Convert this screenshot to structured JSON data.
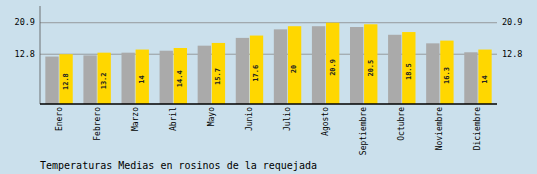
{
  "chart_data": {
    "type": "bar",
    "title": "Temperaturas Medias en rosinos de la requejada",
    "categories": [
      "Enero",
      "Febrero",
      "Marzo",
      "Abril",
      "Mayo",
      "Junio",
      "Julio",
      "Agosto",
      "Septiembre",
      "Octubre",
      "Noviembre",
      "Diciembre"
    ],
    "series": [
      {
        "color": "#AAAAAA",
        "values": [
          12.2,
          12.5,
          13.2,
          13.7,
          15.0,
          17.0,
          19.2,
          20.0,
          19.8,
          17.8,
          15.6,
          13.3
        ]
      },
      {
        "color": "#FFD700",
        "data_labels": true,
        "values": [
          12.8,
          13.2,
          14.0,
          14.4,
          15.7,
          17.6,
          20.0,
          20.9,
          20.5,
          18.5,
          16.3,
          14.0
        ]
      }
    ],
    "ylim": [
      0,
      25.2
    ],
    "yticks": [
      12.8,
      20.9
    ],
    "grid": true
  }
}
